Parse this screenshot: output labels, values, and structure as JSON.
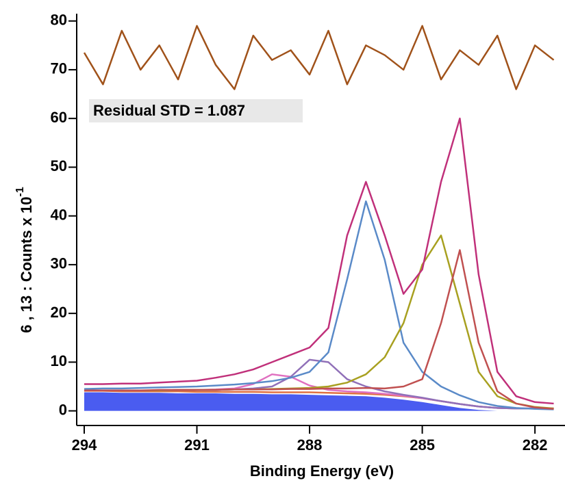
{
  "chart_data": {
    "type": "line",
    "xlabel": "Binding Energy (eV)",
    "ylabel": "6 , 13 : Counts x 10",
    "ylabel_exponent": "-1",
    "annotation": "Residual STD = 1.087",
    "xlim": [
      294.2,
      281.2
    ],
    "ylim": [
      -3,
      81.5
    ],
    "xticks": [
      294,
      291,
      288,
      285,
      282
    ],
    "yticks": [
      0,
      10,
      20,
      30,
      40,
      50,
      60,
      70,
      80
    ],
    "x": [
      294,
      293.5,
      293,
      292.5,
      292,
      291.5,
      291,
      290.5,
      290,
      289.5,
      289,
      288.5,
      288,
      287.5,
      287,
      286.5,
      286,
      285.5,
      285,
      284.5,
      284,
      283.5,
      283,
      282.5,
      282,
      281.5
    ],
    "series": [
      {
        "kind": "area",
        "color": "#4a5cf0",
        "values": [
          3.8,
          3.8,
          3.7,
          3.7,
          3.7,
          3.6,
          3.6,
          3.6,
          3.5,
          3.5,
          3.4,
          3.4,
          3.3,
          3.2,
          3.1,
          3.0,
          2.7,
          2.3,
          1.8,
          1.2,
          0.6,
          0.2,
          0,
          0,
          0,
          0
        ]
      },
      {
        "kind": "line",
        "color": "#e07040",
        "values": [
          4.1,
          4.1,
          4.0,
          4.0,
          4.0,
          4.0,
          3.9,
          3.9,
          3.9,
          3.9,
          3.8,
          3.8,
          3.8,
          3.7,
          3.6,
          3.5,
          3.3,
          3.0,
          2.6,
          2.0,
          1.4,
          0.9,
          0.6,
          0.5,
          0.5,
          0.5
        ]
      },
      {
        "kind": "line",
        "color": "#e070c0",
        "values": [
          4.2,
          4.2,
          4.2,
          4.2,
          4.2,
          4.3,
          4.3,
          4.4,
          4.6,
          5.5,
          7.5,
          7.0,
          5.2,
          4.3,
          4.0,
          3.8,
          3.5,
          3.1,
          2.6,
          2.0,
          1.4,
          0.9,
          0.6,
          0.5,
          0.5,
          0.5
        ]
      },
      {
        "kind": "line",
        "color": "#9070b8",
        "values": [
          4.2,
          4.2,
          4.2,
          4.2,
          4.2,
          4.3,
          4.3,
          4.3,
          4.4,
          4.6,
          5.0,
          7.0,
          10.5,
          10.0,
          6.5,
          5.0,
          4.0,
          3.3,
          2.7,
          2.0,
          1.4,
          0.9,
          0.6,
          0.5,
          0.5,
          0.5
        ]
      },
      {
        "kind": "line",
        "color": "#5a8ac8",
        "values": [
          4.5,
          4.6,
          4.6,
          4.7,
          4.8,
          4.9,
          5.0,
          5.2,
          5.4,
          5.7,
          6.1,
          6.8,
          8.0,
          12,
          27,
          43,
          31,
          14,
          8,
          5,
          3.2,
          1.8,
          1,
          0.6,
          0.4,
          0.3
        ]
      },
      {
        "kind": "line",
        "color": "#a8a020",
        "values": [
          4.2,
          4.2,
          4.2,
          4.2,
          4.2,
          4.3,
          4.3,
          4.3,
          4.4,
          4.4,
          4.5,
          4.6,
          4.7,
          5,
          5.8,
          7.5,
          11,
          18,
          30,
          36,
          22,
          8,
          3,
          1.5,
          0.8,
          0.5
        ]
      },
      {
        "kind": "line",
        "color": "#c05050",
        "values": [
          4.2,
          4.2,
          4.2,
          4.2,
          4.3,
          4.3,
          4.3,
          4.3,
          4.4,
          4.4,
          4.4,
          4.5,
          4.5,
          4.6,
          4.6,
          4.7,
          4.6,
          5,
          6.5,
          18,
          33,
          14,
          4,
          1.5,
          0.7,
          0.4
        ]
      },
      {
        "kind": "line",
        "color": "#c0307a",
        "values": [
          5.5,
          5.5,
          5.6,
          5.6,
          5.8,
          6,
          6.2,
          6.8,
          7.5,
          8.5,
          10,
          11.5,
          13,
          17,
          36,
          47,
          36,
          24,
          29,
          47,
          60,
          28,
          8,
          3,
          1.8,
          1.5
        ]
      },
      {
        "kind": "line",
        "color": "#a0521a",
        "values": [
          73.5,
          67,
          78,
          70,
          75,
          68,
          79,
          71,
          66,
          77,
          72,
          74,
          69,
          78,
          67,
          75,
          73,
          70,
          79,
          68,
          74,
          71,
          77,
          66,
          75,
          72
        ]
      }
    ]
  }
}
